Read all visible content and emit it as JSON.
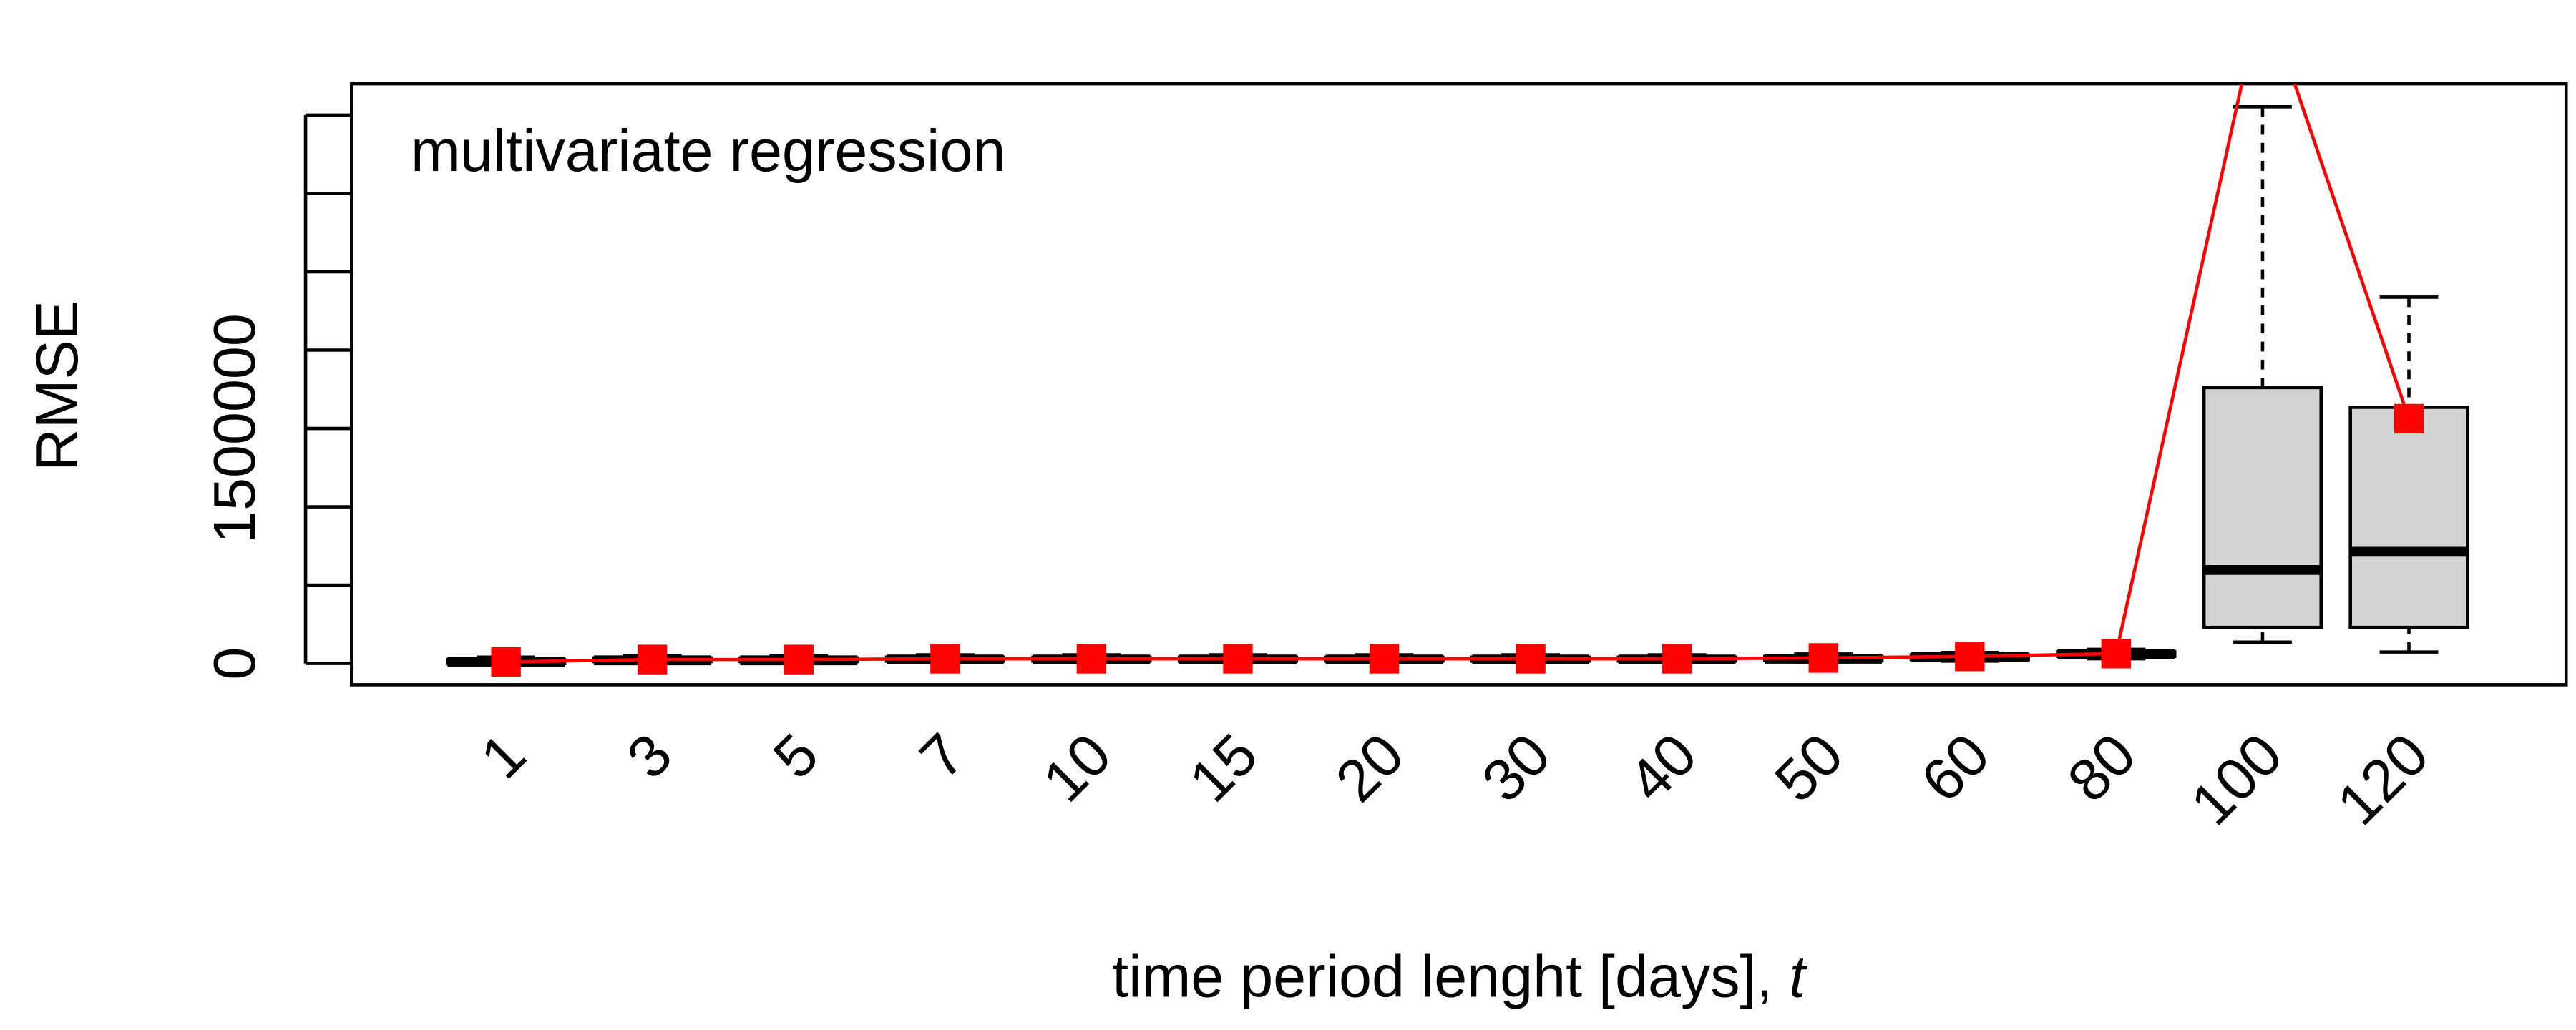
{
  "chart_data": {
    "type": "box",
    "title": "multivariate regression",
    "ylabel": "RMSE",
    "xlabel": "time period lenght [days], ",
    "xlabel_var": "t",
    "categories": [
      "1",
      "3",
      "5",
      "7",
      "10",
      "15",
      "20",
      "30",
      "40",
      "50",
      "60",
      "80",
      "100",
      "120"
    ],
    "boxes": [
      {
        "low": 0,
        "q1": 0,
        "median": 10000,
        "q3": 25000,
        "high": 40000
      },
      {
        "low": 5000,
        "q1": 12000,
        "median": 20000,
        "q3": 35000,
        "high": 50000
      },
      {
        "low": 5000,
        "q1": 12000,
        "median": 20000,
        "q3": 35000,
        "high": 50000
      },
      {
        "low": 8000,
        "q1": 15000,
        "median": 25000,
        "q3": 40000,
        "high": 55000
      },
      {
        "low": 8000,
        "q1": 15000,
        "median": 25000,
        "q3": 40000,
        "high": 55000
      },
      {
        "low": 8000,
        "q1": 15000,
        "median": 25000,
        "q3": 40000,
        "high": 55000
      },
      {
        "low": 8000,
        "q1": 15000,
        "median": 25000,
        "q3": 40000,
        "high": 55000
      },
      {
        "low": 8000,
        "q1": 15000,
        "median": 25000,
        "q3": 40000,
        "high": 55000
      },
      {
        "low": 8000,
        "q1": 15000,
        "median": 25000,
        "q3": 40000,
        "high": 55000
      },
      {
        "low": 10000,
        "q1": 18000,
        "median": 30000,
        "q3": 45000,
        "high": 60000
      },
      {
        "low": 15000,
        "q1": 25000,
        "median": 40000,
        "q3": 55000,
        "high": 70000
      },
      {
        "low": 30000,
        "q1": 45000,
        "median": 60000,
        "q3": 75000,
        "high": 90000
      },
      {
        "low": 136000,
        "q1": 230000,
        "median": 597000,
        "q3": 1761000,
        "high": 3553000
      },
      {
        "low": 73000,
        "q1": 230000,
        "median": 713000,
        "q3": 1635000,
        "high": 2338000
      }
    ],
    "box_color": "#d3d3d3",
    "means": {
      "name": "mean",
      "color": "#ff0000",
      "values": [
        10000,
        25000,
        25000,
        30000,
        30000,
        30000,
        30000,
        30000,
        30000,
        35000,
        45000,
        63000,
        4300000,
        1562000
      ]
    },
    "ylim": [
      -136000,
      3700000
    ],
    "yticks": [
      0,
      1500000
    ],
    "yticks_unlabeled": [
      500000,
      1000000,
      2000000,
      2500000,
      3000000,
      3500000
    ]
  }
}
